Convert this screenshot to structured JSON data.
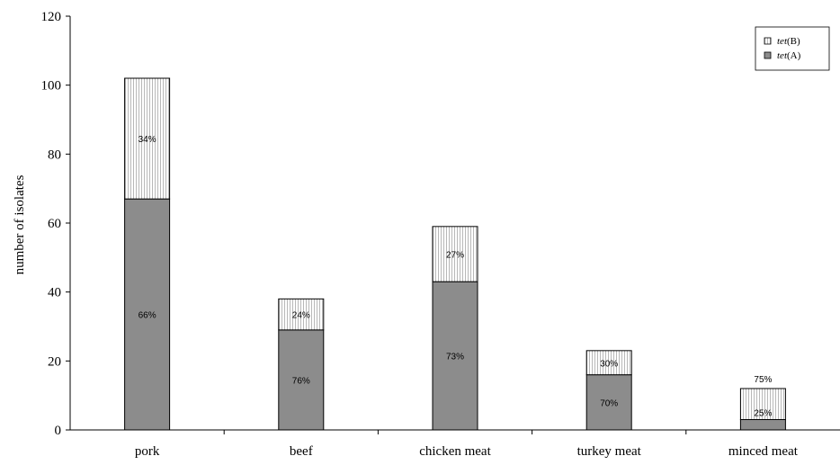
{
  "chart_data": {
    "type": "bar",
    "stacked": true,
    "ylabel": "number of isolates",
    "ylim": [
      0,
      120
    ],
    "yticks": [
      0,
      20,
      40,
      60,
      80,
      100,
      120
    ],
    "categories": [
      "pork",
      "beef",
      "chicken meat",
      "turkey meat",
      "minced meat"
    ],
    "series": [
      {
        "name_gene": "tet",
        "name_suffix": "(A)",
        "values": [
          67,
          29,
          43,
          16,
          3
        ],
        "labels": [
          "66%",
          "76%",
          "73%",
          "70%",
          "25%"
        ],
        "color": "#8c8c8c",
        "pattern": "solid"
      },
      {
        "name_gene": "tet",
        "name_suffix": "(B)",
        "values": [
          35,
          9,
          16,
          7,
          9
        ],
        "labels": [
          "34%",
          "24%",
          "27%",
          "30%",
          "75%"
        ],
        "color": "#ffffff",
        "pattern": "vertical-lines"
      }
    ],
    "legend": "top-right",
    "grid": false
  }
}
